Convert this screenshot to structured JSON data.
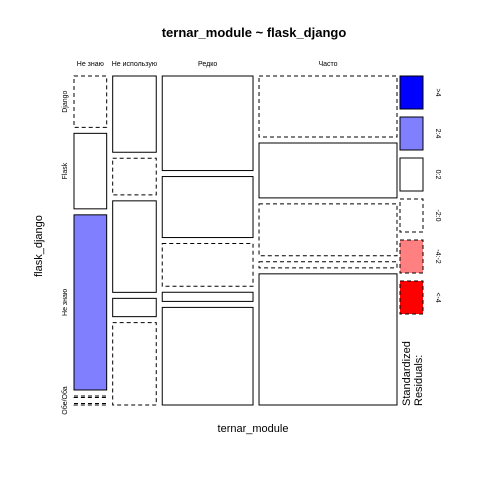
{
  "chart_data": {
    "type": "mosaic",
    "title": "ternar_module ~ flask_django",
    "xlabel": "ternar_module",
    "ylabel": "flask_django",
    "x_categories": [
      "Не знаю",
      "Не использую",
      "Редко",
      "Часто"
    ],
    "x_tick_labels": [
      "Не знаю",
      "Не использую",
      "Редко",
      "Часто"
    ],
    "y_categories": [
      "Django",
      "Flask",
      "Не знаю",
      "Оба",
      "Обе"
    ],
    "y_tick_labels": [
      "Django",
      "Flask",
      "Не знаю",
      "Обе/Оба"
    ],
    "column_widths": [
      0.09,
      0.12,
      0.25,
      0.38
    ],
    "cells": [
      {
        "x": "Не знаю",
        "y": "Django",
        "share": 0.17,
        "residual_class": "-2:0"
      },
      {
        "x": "Не знаю",
        "y": "Flask",
        "share": 0.25,
        "residual_class": "0:2"
      },
      {
        "x": "Не знаю",
        "y": "Не знаю",
        "share": 0.58,
        "residual_class": "2:4"
      },
      {
        "x": "Не знаю",
        "y": "Оба",
        "share": 0.005,
        "residual_class": "-2:0"
      },
      {
        "x": "Не знаю",
        "y": "Обе",
        "share": 0.005,
        "residual_class": "-2:0"
      },
      {
        "x": "Не использую",
        "y": "Django",
        "share": 0.25,
        "residual_class": "0:2"
      },
      {
        "x": "Не использую",
        "y": "Flask",
        "share": 0.12,
        "residual_class": "-2:0"
      },
      {
        "x": "Не использую",
        "y": "Не знаю",
        "share": 0.3,
        "residual_class": "0:2"
      },
      {
        "x": "Не использую",
        "y": "Оба",
        "share": 0.06,
        "residual_class": "0:2"
      },
      {
        "x": "Не использую",
        "y": "Обе",
        "share": 0.27,
        "residual_class": "-2:0"
      },
      {
        "x": "Редко",
        "y": "Django",
        "share": 0.31,
        "residual_class": "0:2"
      },
      {
        "x": "Редко",
        "y": "Flask",
        "share": 0.2,
        "residual_class": "0:2"
      },
      {
        "x": "Редко",
        "y": "Не знаю",
        "share": 0.14,
        "residual_class": "-2:0"
      },
      {
        "x": "Редко",
        "y": "Оба",
        "share": 0.03,
        "residual_class": "0:2"
      },
      {
        "x": "Редко",
        "y": "Обе",
        "share": 0.32,
        "residual_class": "0:2"
      },
      {
        "x": "Часто",
        "y": "Django",
        "share": 0.2,
        "residual_class": "-2:0"
      },
      {
        "x": "Часто",
        "y": "Flask",
        "share": 0.18,
        "residual_class": "0:2"
      },
      {
        "x": "Часто",
        "y": "Не знаю",
        "share": 0.17,
        "residual_class": "-2:0"
      },
      {
        "x": "Часто",
        "y": "Оба",
        "share": 0.02,
        "residual_class": "-2:0"
      },
      {
        "x": "Часто",
        "y": "Обе",
        "share": 0.43,
        "residual_class": "0:2"
      }
    ],
    "legend": {
      "title_lines": [
        "Standardized",
        "Residuals:"
      ],
      "position": "right",
      "entries": [
        {
          "label": ">4",
          "fill": "#0000ff",
          "dashed": false
        },
        {
          "label": "2:4",
          "fill": "#8080ff",
          "dashed": false
        },
        {
          "label": "0:2",
          "fill": "#ffffff",
          "dashed": false
        },
        {
          "label": "-2:0",
          "fill": "#ffffff",
          "dashed": true
        },
        {
          "label": "-4:-2",
          "fill": "#ff8080",
          "dashed": true
        },
        {
          "label": "<-4",
          "fill": "#ff0000",
          "dashed": true
        }
      ]
    },
    "residual_fills": {
      ">4": "#0000ff",
      "2:4": "#8080ff",
      "0:2": "#ffffff",
      "-2:0": "#ffffff",
      "-4:-2": "#ff8080",
      "<-4": "#ff0000"
    },
    "dashed_classes": [
      "-2:0",
      "-4:-2",
      "<-4"
    ]
  }
}
